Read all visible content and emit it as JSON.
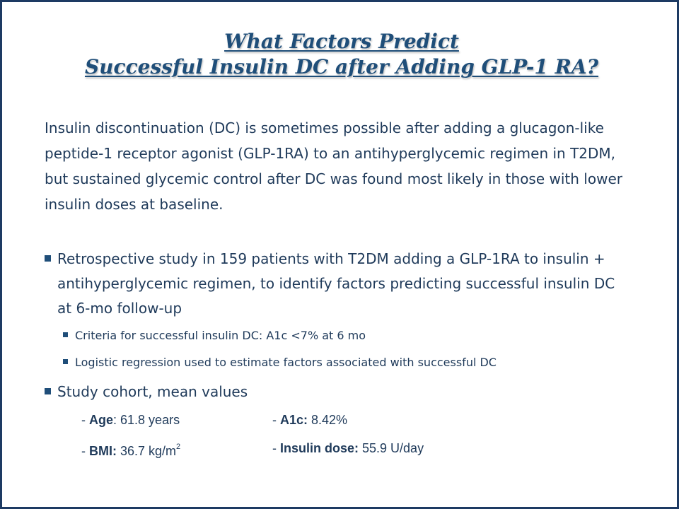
{
  "title": {
    "line1": "What Factors Predict",
    "line2": "Successful Insulin DC after Adding GLP-1 RA?"
  },
  "intro": "Insulin discontinuation (DC) is sometimes possible after adding a glucagon-like peptide-1 receptor agonist (GLP-1RA) to an antihyperglycemic regimen in T2DM, but sustained glycemic control after DC was found most likely in those with lower insulin doses at baseline.",
  "bullets": {
    "study": "Retrospective study in 159 patients with T2DM adding a GLP-1RA to insulin + antihyperglycemic regimen, to identify factors predicting successful insulin DC at 6-mo follow-up",
    "sub1": "Criteria for successful insulin DC: A1c <7% at 6 mo",
    "sub2": "Logistic regression used to estimate factors associated with successful DC",
    "cohort": "Study cohort, mean values"
  },
  "cohort": {
    "age_label": "Age",
    "age_value": ": 61.8 years",
    "a1c_label": "A1c:",
    "a1c_value": " 8.42%",
    "bmi_label": "BMI:",
    "bmi_value": " 36.7 kg/m",
    "bmi_sup": "2",
    "dose_label": "Insulin dose:",
    "dose_value": " 55.9 U/day",
    "dash": "- "
  },
  "colors": {
    "title": "#1f4e79",
    "text": "#1f3a5a",
    "border": "#1d3a63"
  }
}
